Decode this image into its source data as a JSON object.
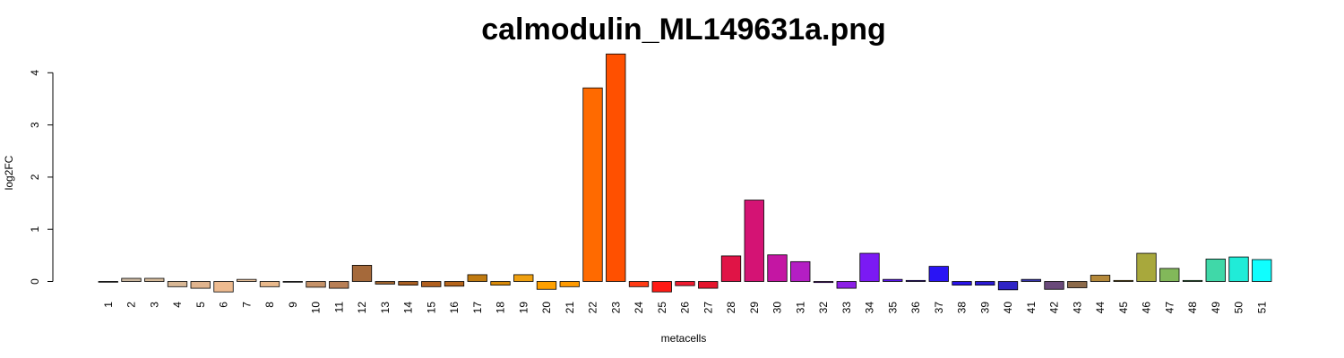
{
  "chart_data": {
    "type": "bar",
    "title": "calmodulin_ML149631a.png",
    "xlabel": "metacells",
    "ylabel": "log2FC",
    "ylim": [
      -0.2,
      4.4
    ],
    "yticks": [
      0,
      1,
      2,
      3,
      4
    ],
    "grid": false,
    "legend": "none",
    "categories": [
      "1",
      "2",
      "3",
      "4",
      "5",
      "6",
      "7",
      "8",
      "9",
      "10",
      "11",
      "12",
      "13",
      "14",
      "15",
      "16",
      "17",
      "18",
      "19",
      "20",
      "21",
      "22",
      "23",
      "24",
      "25",
      "26",
      "27",
      "28",
      "29",
      "30",
      "31",
      "32",
      "33",
      "34",
      "35",
      "36",
      "37",
      "38",
      "39",
      "40",
      "41",
      "42",
      "43",
      "44",
      "45",
      "46",
      "47",
      "48",
      "49",
      "50",
      "51"
    ],
    "values": [
      0.0,
      0.06,
      0.06,
      -0.1,
      -0.13,
      -0.2,
      0.04,
      -0.1,
      0.0,
      -0.11,
      -0.13,
      0.31,
      -0.05,
      -0.07,
      -0.1,
      -0.09,
      0.13,
      -0.07,
      0.13,
      -0.15,
      -0.1,
      3.71,
      4.36,
      -0.1,
      -0.2,
      -0.08,
      -0.13,
      0.49,
      1.56,
      0.51,
      0.38,
      -0.02,
      -0.13,
      0.54,
      0.04,
      0.02,
      0.29,
      -0.07,
      -0.07,
      -0.16,
      0.04,
      -0.15,
      -0.12,
      0.12,
      0.02,
      0.54,
      0.25,
      0.02,
      0.43,
      0.47,
      0.42
    ],
    "colors": [
      "#D0D0D0",
      "#CBB8A0",
      "#D6BC9C",
      "#D9B896",
      "#E0B48E",
      "#EEBB90",
      "#EAC39C",
      "#E9B98C",
      "#C8B8AC",
      "#C59269",
      "#B87F56",
      "#A5693A",
      "#A0642E",
      "#A85F23",
      "#B05F1E",
      "#B5641A",
      "#C07A10",
      "#D88A0A",
      "#EFA010",
      "#FFA000",
      "#FF9A00",
      "#FF6A00",
      "#FF5000",
      "#FF3A14",
      "#FF1A14",
      "#F01B30",
      "#E5142C",
      "#E01446",
      "#D41374",
      "#C416A3",
      "#B41EC4",
      "#8A1CD6",
      "#8C20E6",
      "#7B1AF4",
      "#5D18F6",
      "#4A18F2",
      "#2A14F4",
      "#2A14EA",
      "#2C1AD4",
      "#2F24C6",
      "#3A38B4",
      "#6A4A7A",
      "#8C6A4A",
      "#B5893A",
      "#C09A30",
      "#A8A83C",
      "#82B85A",
      "#62C87A",
      "#40D8A8",
      "#20ECD8",
      "#10FEFE"
    ]
  }
}
